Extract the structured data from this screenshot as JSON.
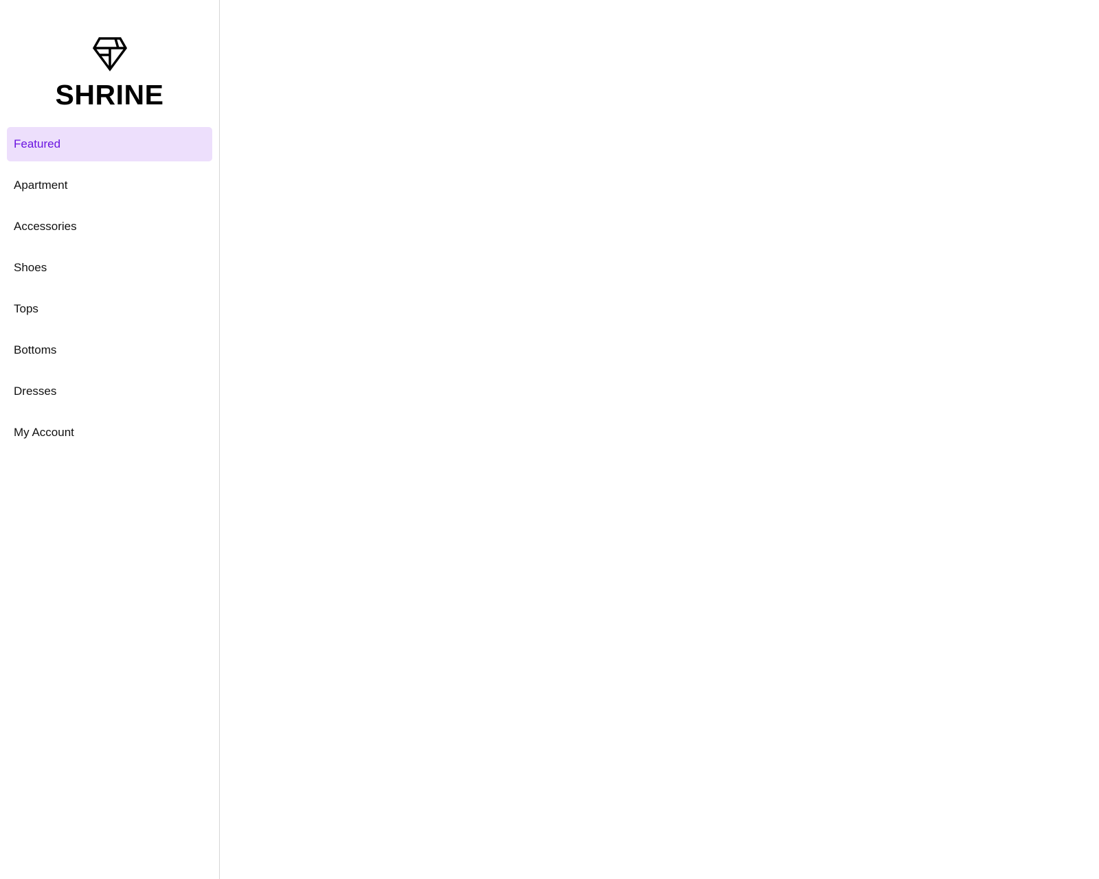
{
  "sidebar": {
    "brand": "SHRINE",
    "logo_icon": "diamond-icon",
    "active_color": "#6a14e0",
    "active_bg": "#eddffc",
    "items": [
      {
        "label": "Featured",
        "active": true
      },
      {
        "label": "Apartment"
      },
      {
        "label": "Accessories"
      },
      {
        "label": "Shoes"
      },
      {
        "label": "Tops"
      },
      {
        "label": "Bottoms"
      },
      {
        "label": "Dresses"
      },
      {
        "label": "My Account"
      }
    ]
  }
}
